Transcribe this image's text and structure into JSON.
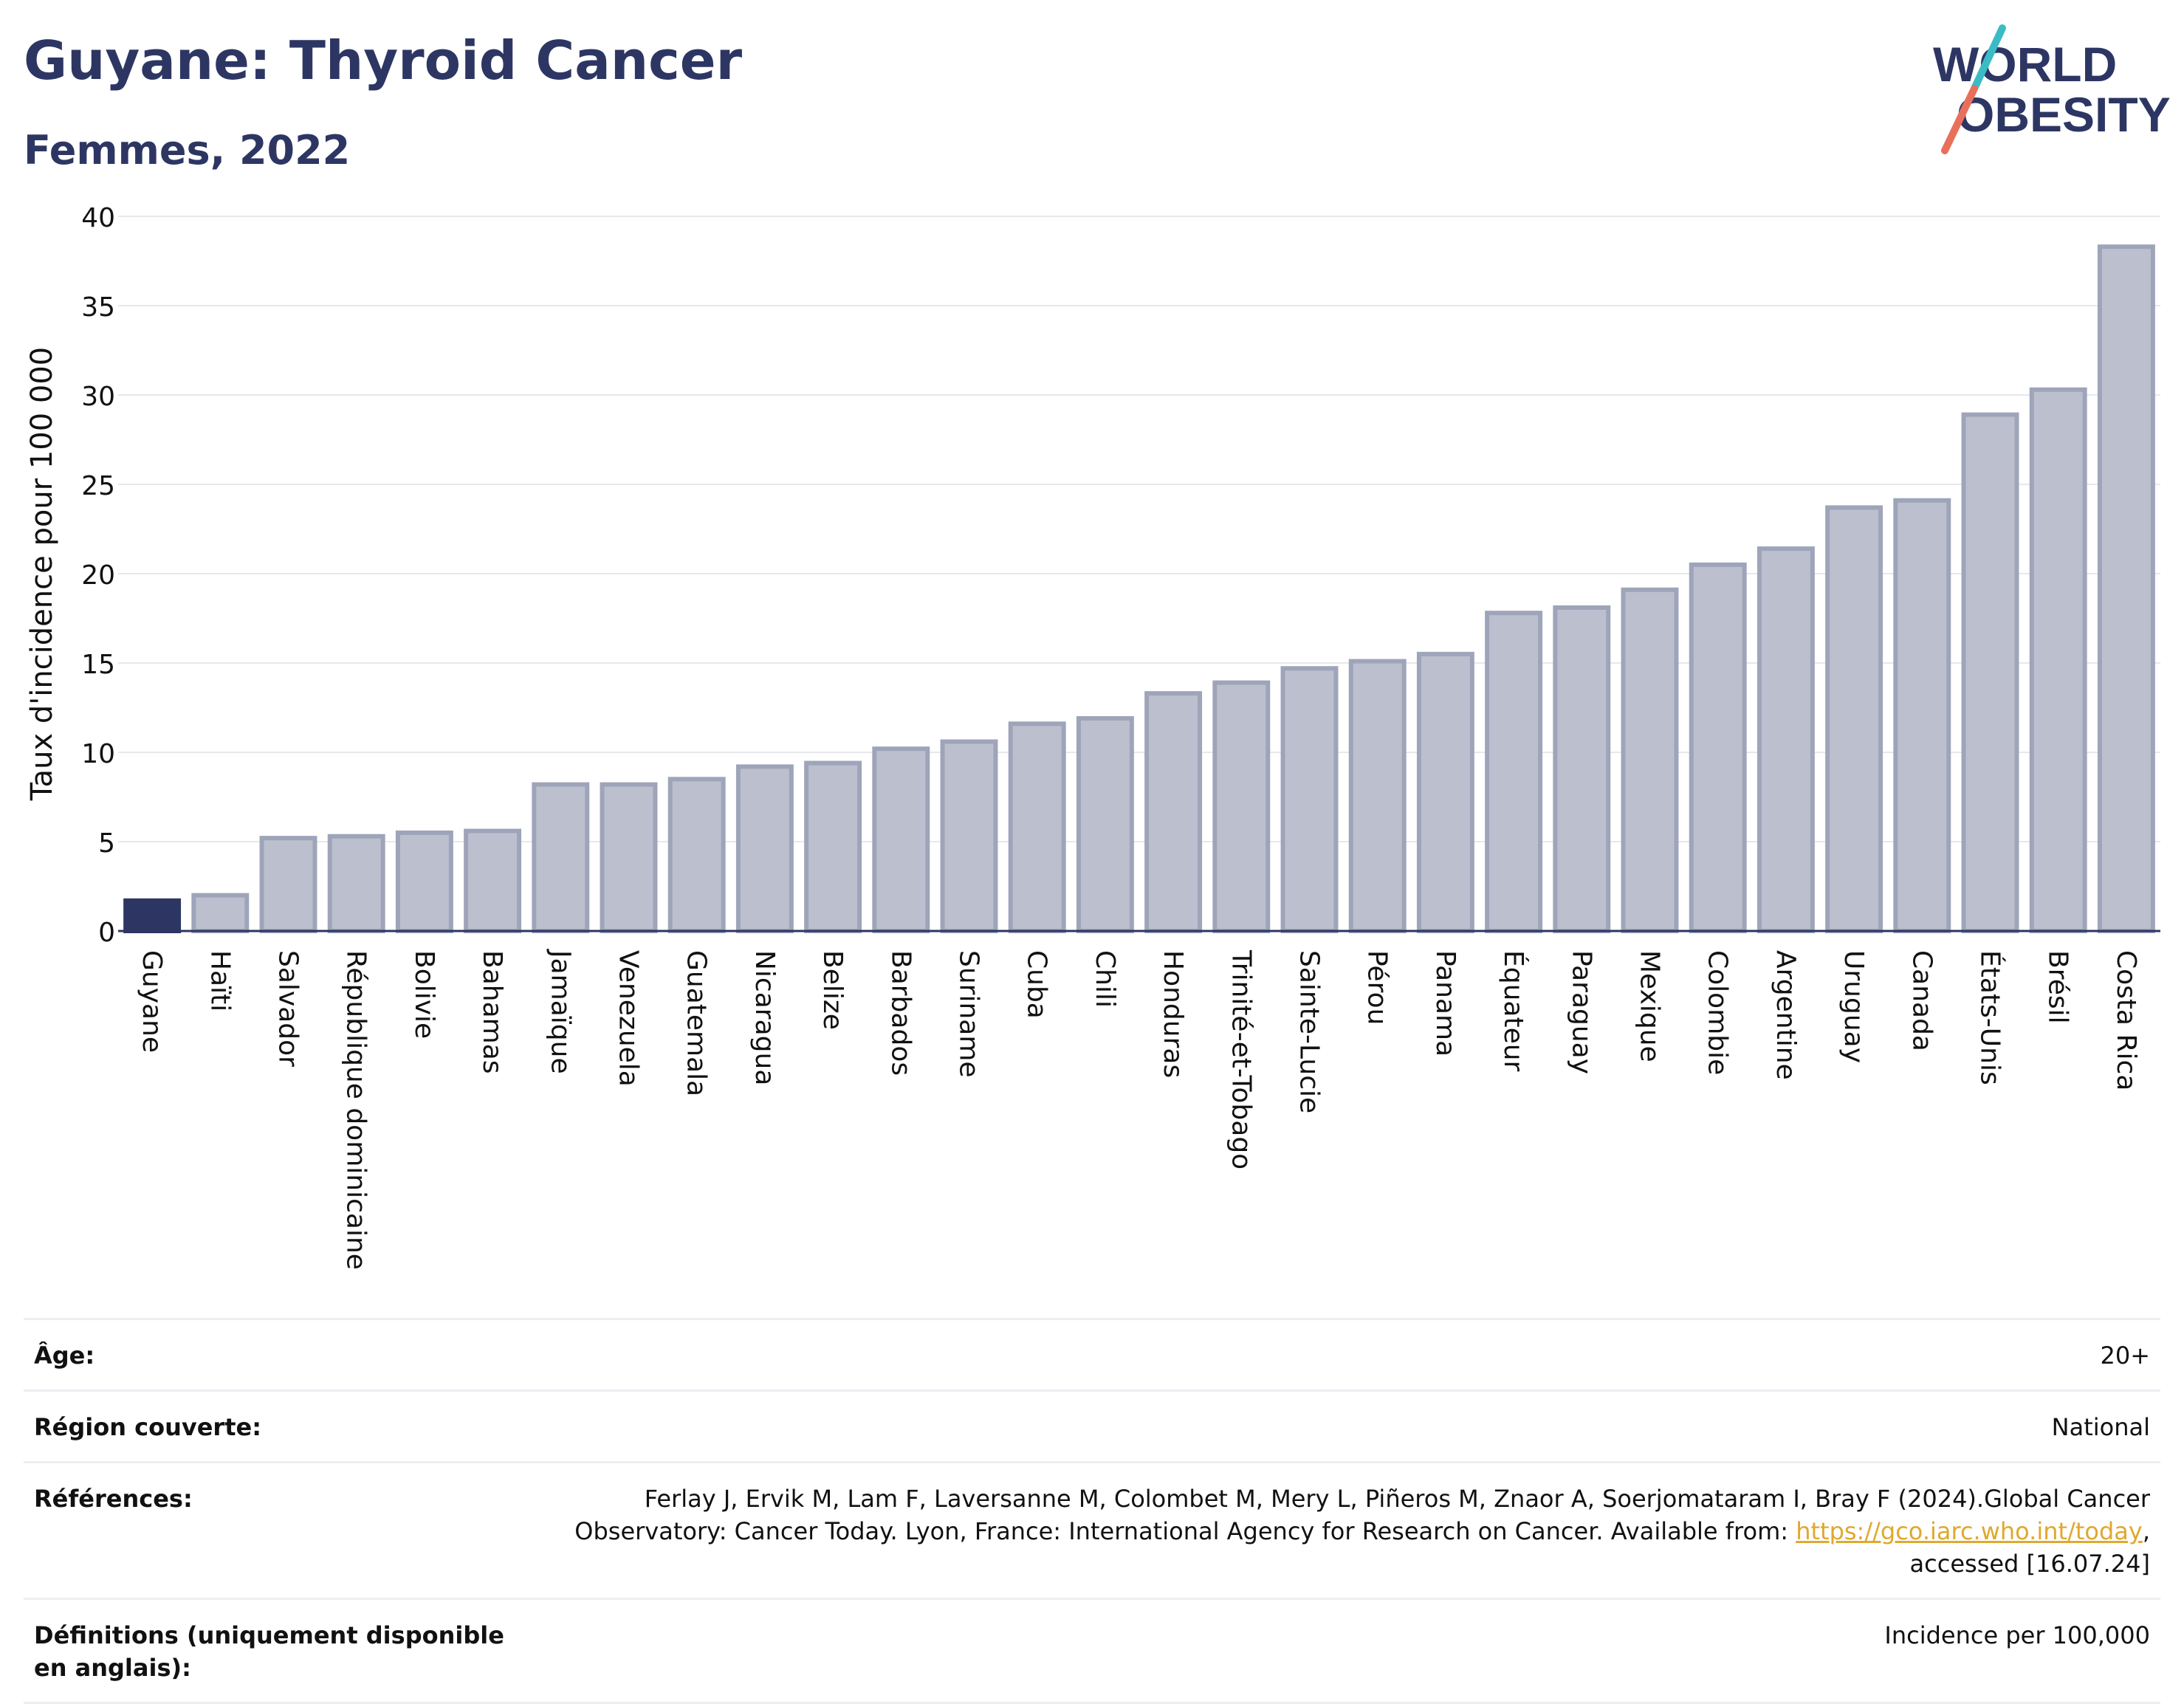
{
  "header": {
    "title": "Guyane: Thyroid Cancer",
    "subtitle": "Femmes, 2022"
  },
  "logo": {
    "line1": "WORLD",
    "line2": "OBESITY"
  },
  "colors": {
    "title": "#2d3663",
    "highlight_bar": "#2d3663",
    "bar_fill": "#bcc0ce",
    "bar_stroke": "#9ea4b9",
    "grid": "#e6e8ec",
    "link": "#e0a82e"
  },
  "chart_data": {
    "type": "bar",
    "ylabel": "Taux d'incidence pour 100 000",
    "xlabel": "",
    "ylim": [
      0,
      40
    ],
    "yticks": [
      0,
      5,
      10,
      15,
      20,
      25,
      30,
      35,
      40
    ],
    "grid": true,
    "highlight": "Guyane",
    "categories": [
      "Guyane",
      "Haïti",
      "Salvador",
      "République dominicaine",
      "Bolivie",
      "Bahamas",
      "Jamaïque",
      "Venezuela",
      "Guatemala",
      "Nicaragua",
      "Belize",
      "Barbados",
      "Suriname",
      "Cuba",
      "Chili",
      "Honduras",
      "Trinité-et-Tobago",
      "Sainte-Lucie",
      "Pérou",
      "Panama",
      "Équateur",
      "Paraguay",
      "Mexique",
      "Colombie",
      "Argentine",
      "Uruguay",
      "Canada",
      "États-Unis",
      "Brésil",
      "Costa Rica"
    ],
    "values": [
      1.7,
      2.0,
      5.2,
      5.3,
      5.5,
      5.6,
      8.2,
      8.2,
      8.5,
      9.2,
      9.4,
      10.2,
      10.6,
      11.6,
      11.9,
      13.3,
      13.9,
      14.7,
      15.1,
      15.5,
      17.8,
      18.1,
      19.1,
      20.5,
      21.4,
      23.7,
      24.1,
      28.9,
      30.3,
      38.3
    ]
  },
  "meta": {
    "age_label": "Âge:",
    "age_value": "20+",
    "region_label": "Région couverte:",
    "region_value": "National",
    "ref_label": "Références:",
    "ref_text_1": "Ferlay J, Ervik M, Lam F, Laversanne M, Colombet M, Mery L, Piñeros M, Znaor A, Soerjomataram I, Bray F (2024).Global Cancer Observatory: Cancer Today. Lyon, France: International Agency for Research on Cancer. Available from: ",
    "ref_link": "https://gco.iarc.who.int/today",
    "ref_text_2": ", accessed [16.07.24]",
    "def_label": "Définitions (uniquement disponible en anglais):",
    "def_value": "Incidence per 100,000"
  }
}
